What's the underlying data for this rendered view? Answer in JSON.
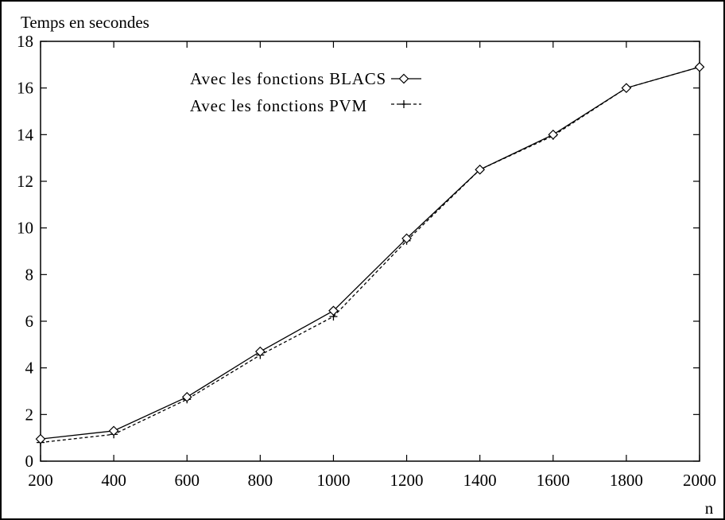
{
  "chart_data": {
    "type": "line",
    "ylabel": "Temps en secondes",
    "xlabel": "n",
    "xlim": [
      200,
      2000
    ],
    "ylim": [
      0,
      18
    ],
    "x": [
      200,
      400,
      600,
      800,
      1000,
      1200,
      1400,
      1600,
      1800,
      2000
    ],
    "xticks": [
      "200",
      "400",
      "600",
      "800",
      "1000",
      "1200",
      "1400",
      "1600",
      "1800",
      "2000"
    ],
    "yticks": [
      "0",
      "2",
      "4",
      "6",
      "8",
      "10",
      "12",
      "14",
      "16",
      "18"
    ],
    "grid": false,
    "legend_position": "top-left",
    "series": [
      {
        "name": "Avec les fonctions BLACS",
        "marker": "diamond",
        "line": "solid",
        "values": [
          0.95,
          1.3,
          2.75,
          4.7,
          6.45,
          9.55,
          12.5,
          14.0,
          16.0,
          16.9
        ]
      },
      {
        "name": "Avec les fonctions PVM",
        "marker": "plus",
        "line": "dashed",
        "values": [
          0.8,
          1.15,
          2.65,
          4.55,
          6.2,
          9.45,
          12.5,
          13.95,
          16.0,
          16.9
        ]
      }
    ]
  }
}
